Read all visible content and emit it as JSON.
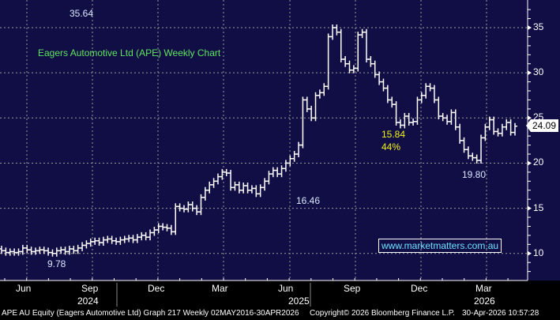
{
  "chart_data": {
    "type": "bar-ohlc",
    "title": "Eagers Automotive Ltd (APE) Weekly Chart",
    "ylim": [
      6.5,
      38
    ],
    "yticks": [
      10,
      15,
      20,
      25,
      30,
      35
    ],
    "xticks": [
      "Jun",
      "Sep",
      "Dec",
      "Mar",
      "Jun",
      "Sep",
      "Dec",
      "Mar"
    ],
    "years": [
      "2024",
      "2025",
      "2026"
    ],
    "grid": true,
    "closes": [
      10.3,
      10.1,
      10.2,
      10.1,
      10.2,
      10.6,
      10.4,
      10.2,
      10.3,
      10.4,
      10.3,
      10.1,
      10.0,
      10.3,
      10.4,
      10.2,
      10.5,
      10.3,
      10.6,
      10.9,
      11.1,
      11.3,
      11.4,
      11.2,
      11.5,
      11.6,
      11.4,
      11.3,
      11.5,
      11.6,
      11.7,
      11.5,
      11.8,
      12.0,
      11.8,
      12.3,
      12.6,
      13.0,
      12.9,
      12.8,
      12.4,
      15.2,
      15.0,
      14.9,
      15.4,
      15.0,
      14.6,
      16.2,
      17.0,
      17.6,
      18.0,
      18.5,
      19.0,
      18.9,
      17.3,
      17.6,
      17.0,
      17.5,
      17.0,
      17.2,
      16.6,
      17.3,
      18.0,
      18.8,
      19.2,
      18.8,
      19.4,
      20.0,
      20.5,
      21.0,
      22.0,
      27.0,
      26.0,
      25.0,
      27.5,
      27.8,
      28.5,
      34.0,
      35.0,
      34.5,
      31.5,
      31.0,
      30.3,
      30.5,
      34.2,
      34.5,
      31.5,
      31.0,
      29.8,
      29.0,
      28.3,
      27.0,
      26.5,
      24.5,
      24.2,
      25.2,
      24.5,
      24.6,
      27.0,
      27.5,
      28.5,
      28.3,
      27.0,
      25.2,
      25.0,
      24.6,
      25.6,
      24.0,
      22.5,
      21.5,
      20.8,
      20.6,
      20.3,
      22.8,
      24.0,
      24.8,
      23.5,
      23.3,
      24.0,
      24.5,
      23.4,
      24.09
    ],
    "annotations": {
      "high": "35.64",
      "mid_low": "16.46",
      "low": "9.78",
      "drawdown": "15.84",
      "drawdown_pct": "44%",
      "recent_low": "19.80"
    },
    "last_price": "24.09"
  },
  "watermark": "www.marketmatters.com.au",
  "footer": {
    "left": "APE AU Equity (Eagers Automotive Ltd) Graph 217 Weekly 02MAY2016-30APR2026",
    "center": "Copyright© 2026 Bloomberg Finance L.P.",
    "right": "30-Apr-2026 10:57:28"
  },
  "colors": {
    "background": "#100e44",
    "bars": "#ffffff",
    "title": "#5fe35f",
    "annotation": "#f2f21a"
  }
}
